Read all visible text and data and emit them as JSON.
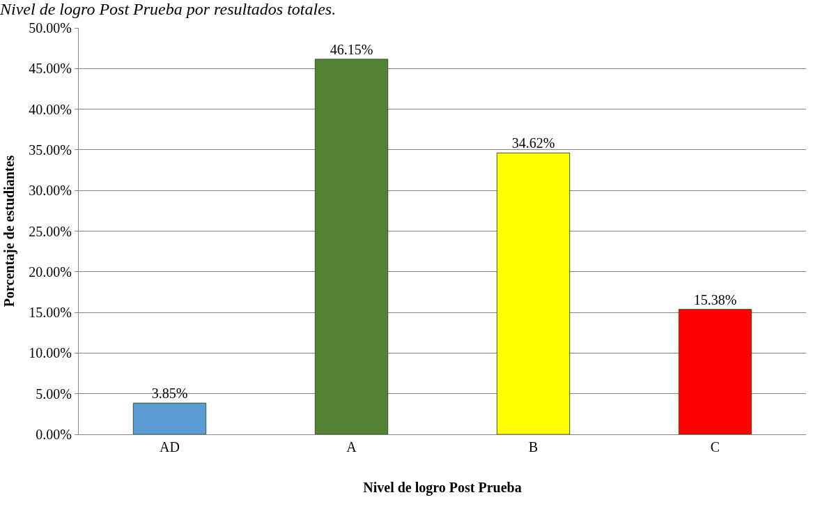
{
  "chart_data": {
    "type": "bar",
    "title": "Nivel de logro Post Prueba por resultados totales.",
    "xlabel": "Nivel de logro Post Prueba",
    "ylabel": "Porcentaje de estudiantes",
    "categories": [
      "AD",
      "A",
      "B",
      "C"
    ],
    "values": [
      3.85,
      46.15,
      34.62,
      15.38
    ],
    "colors": [
      "#5b9bd5",
      "#548235",
      "#ffff00",
      "#ff0000"
    ],
    "value_labels": [
      "3.85%",
      "46.15%",
      "34.62%",
      "15.38%"
    ],
    "ylim": [
      0,
      50
    ],
    "yticks": [
      {
        "value": 0,
        "label": "0.00%"
      },
      {
        "value": 5,
        "label": "5.00%"
      },
      {
        "value": 10,
        "label": "10.00%"
      },
      {
        "value": 15,
        "label": "15.00%"
      },
      {
        "value": 20,
        "label": "20.00%"
      },
      {
        "value": 25,
        "label": "25.00%"
      },
      {
        "value": 30,
        "label": "30.00%"
      },
      {
        "value": 35,
        "label": "35.00%"
      },
      {
        "value": 40,
        "label": "40.00%"
      },
      {
        "value": 45,
        "label": "45.00%"
      },
      {
        "value": 50,
        "label": "50.00%"
      }
    ],
    "grid": "y"
  }
}
